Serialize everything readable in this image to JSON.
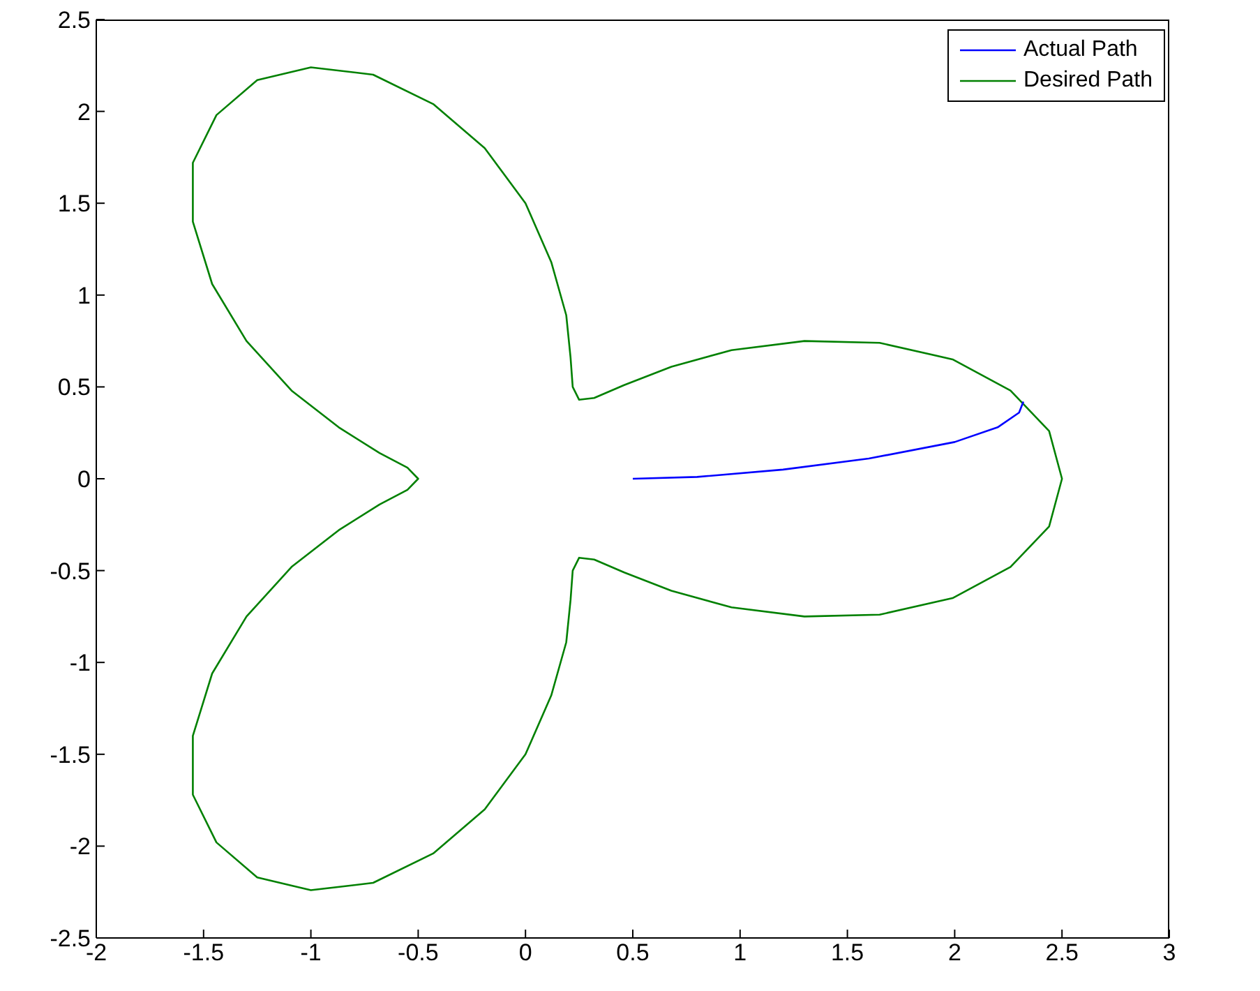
{
  "chart_data": {
    "type": "line",
    "xlim": [
      -2,
      3
    ],
    "xticks": [
      -2,
      -1.5,
      -1,
      -0.5,
      0,
      0.5,
      1,
      1.5,
      2,
      2.5,
      3
    ],
    "ylim": [
      -2.5,
      2.5
    ],
    "yticks": [
      -2.5,
      -2,
      -1.5,
      -1,
      -0.5,
      0,
      0.5,
      1,
      1.5,
      2,
      2.5
    ],
    "grid": false,
    "legend": "top right",
    "marker": "none",
    "line_style": "solid",
    "series": [
      {
        "name": "Actual Path",
        "color": "#0000ff",
        "x": [
          0.5,
          0.8,
          1.2,
          1.6,
          2.0,
          2.2,
          2.3,
          2.32
        ],
        "values": [
          0,
          0.01,
          0.05,
          0.11,
          0.2,
          0.28,
          0.36,
          0.42
        ]
      },
      {
        "name": "Desired Path",
        "color": "#008000",
        "x": [
          2.5,
          2.44,
          2.26,
          1.99,
          1.65,
          1.3,
          0.96,
          0.68,
          0.46,
          0.32,
          0.25,
          0.22,
          0.21,
          0.19,
          0.12,
          0,
          -0.19,
          -0.43,
          -0.71,
          -1.0,
          -1.25,
          -1.44,
          -1.55,
          -1.55,
          -1.46,
          -1.3,
          -1.09,
          -0.87,
          -0.68,
          -0.55,
          -0.5,
          -0.55,
          -0.68,
          -0.87,
          -1.09,
          -1.3,
          -1.46,
          -1.55,
          -1.55,
          -1.44,
          -1.25,
          -1.0,
          -0.71,
          -0.43,
          -0.19,
          0,
          0.12,
          0.19,
          0.21,
          0.22,
          0.25,
          0.32,
          0.46,
          0.68,
          0.96,
          1.3,
          1.65,
          1.99,
          2.26,
          2.44,
          2.5,
          2.44
        ],
        "values": [
          0,
          0.26,
          0.48,
          0.65,
          0.74,
          0.75,
          0.7,
          0.61,
          0.51,
          0.44,
          0.43,
          0.5,
          0.66,
          0.89,
          1.18,
          1.5,
          1.8,
          2.04,
          2.2,
          2.24,
          2.17,
          1.98,
          1.72,
          1.4,
          1.06,
          0.75,
          0.48,
          0.28,
          0.14,
          0.06,
          0,
          -0.06,
          -0.14,
          -0.28,
          -0.48,
          -0.75,
          -1.06,
          -1.4,
          -1.72,
          -1.98,
          -2.17,
          -2.24,
          -2.2,
          -2.04,
          -1.8,
          -1.5,
          -1.18,
          -0.89,
          -0.66,
          -0.5,
          -0.43,
          -0.44,
          -0.51,
          -0.61,
          -0.7,
          -0.75,
          -0.74,
          -0.65,
          -0.48,
          -0.26,
          0,
          0.26
        ]
      }
    ]
  }
}
